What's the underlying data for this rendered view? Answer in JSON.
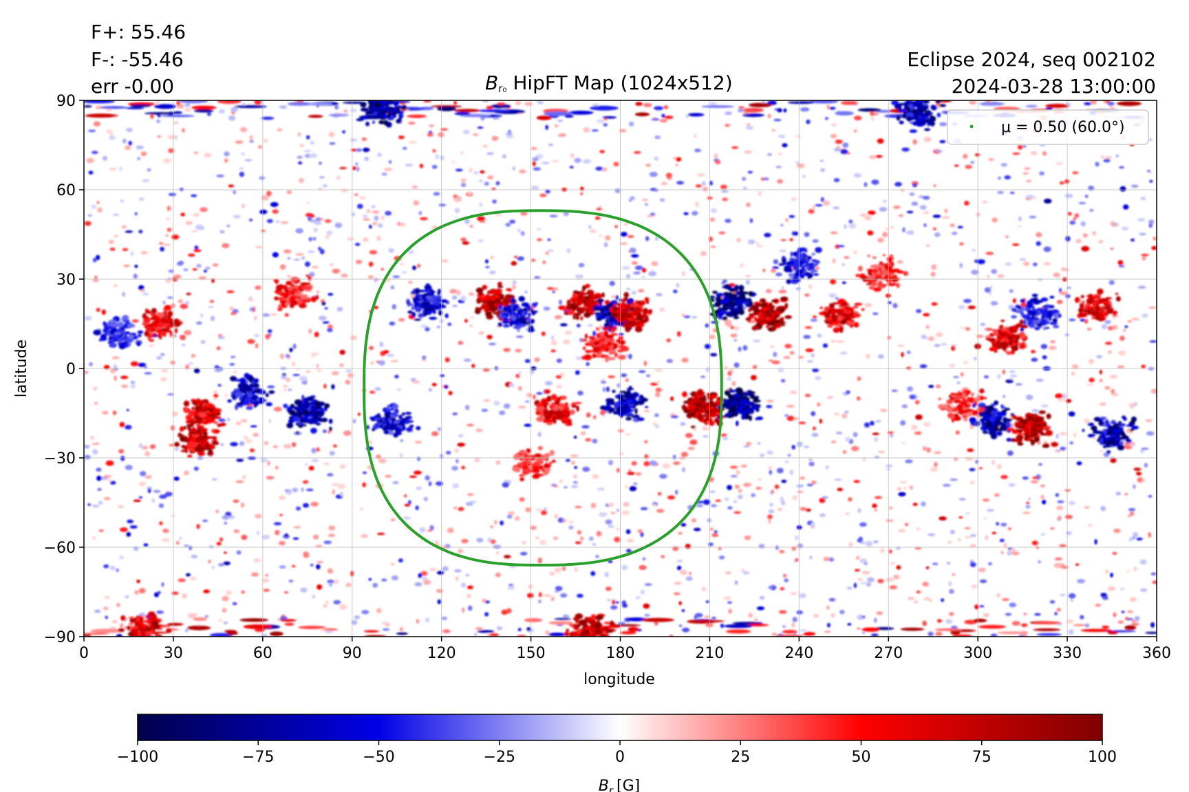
{
  "header": {
    "flux_pos": "F+: 55.46",
    "flux_neg": "F-: -55.46",
    "err": "err -0.00",
    "event": "Eclipse 2024, seq 002102",
    "datetime": "2024-03-28 13:00:00"
  },
  "chart_data": {
    "type": "heatmap",
    "title": {
      "symbol": "B",
      "subscript": "r₀",
      "text": "HipFT Map (1024x512)"
    },
    "xlabel": "longitude",
    "ylabel": "latitude",
    "xlim": [
      0,
      360
    ],
    "ylim": [
      -90,
      90
    ],
    "x_ticks": [
      "0",
      "30",
      "60",
      "90",
      "120",
      "150",
      "180",
      "210",
      "240",
      "270",
      "300",
      "330",
      "360"
    ],
    "y_ticks": [
      "90",
      "60",
      "30",
      "0",
      "−30",
      "−60",
      "−90"
    ],
    "grid": true,
    "colormap": "seismic",
    "color_range": [
      -100,
      100
    ],
    "colorbar": {
      "label_symbol": "B",
      "label_subscript": "r",
      "label_unit": "[G]",
      "ticks": [
        "−100",
        "−75",
        "−50",
        "−25",
        "0",
        "25",
        "50",
        "75",
        "100"
      ],
      "tick_values": [
        -100,
        -75,
        -50,
        -25,
        0,
        25,
        50,
        75,
        100
      ]
    },
    "legend": {
      "placement": "top-right",
      "entry": "μ = 0.50 (60.0°)",
      "color": "#2ca02c"
    },
    "contour": {
      "name": "μ = 0.50 (60.0°)",
      "color": "#2ca02c",
      "center_lon": 153,
      "center_lat": -7,
      "lon_min": 94,
      "lon_max": 214,
      "lat_min": -66,
      "lat_max": 53
    },
    "regions": [
      {
        "lon": 25,
        "lat": 15,
        "polarity": "positive",
        "strength": 70
      },
      {
        "lon": 12,
        "lat": 12,
        "polarity": "negative",
        "strength": 55
      },
      {
        "lon": 70,
        "lat": 25,
        "polarity": "positive",
        "strength": 60
      },
      {
        "lon": 40,
        "lat": -15,
        "polarity": "positive",
        "strength": 80
      },
      {
        "lon": 38,
        "lat": -24,
        "polarity": "positive",
        "strength": 90
      },
      {
        "lon": 55,
        "lat": -8,
        "polarity": "negative",
        "strength": 75
      },
      {
        "lon": 75,
        "lat": -15,
        "polarity": "negative",
        "strength": 85
      },
      {
        "lon": 103,
        "lat": -18,
        "polarity": "negative",
        "strength": 70
      },
      {
        "lon": 115,
        "lat": 22,
        "polarity": "negative",
        "strength": 70
      },
      {
        "lon": 138,
        "lat": 22,
        "polarity": "positive",
        "strength": 90
      },
      {
        "lon": 145,
        "lat": 18,
        "polarity": "negative",
        "strength": 70
      },
      {
        "lon": 168,
        "lat": 22,
        "polarity": "positive",
        "strength": 90
      },
      {
        "lon": 178,
        "lat": 18,
        "polarity": "negative",
        "strength": 90
      },
      {
        "lon": 184,
        "lat": 18,
        "polarity": "positive",
        "strength": 85
      },
      {
        "lon": 175,
        "lat": 8,
        "polarity": "positive",
        "strength": 60
      },
      {
        "lon": 158,
        "lat": -14,
        "polarity": "positive",
        "strength": 70
      },
      {
        "lon": 182,
        "lat": -12,
        "polarity": "negative",
        "strength": 80
      },
      {
        "lon": 150,
        "lat": -32,
        "polarity": "positive",
        "strength": 55
      },
      {
        "lon": 208,
        "lat": -13,
        "polarity": "positive",
        "strength": 100
      },
      {
        "lon": 220,
        "lat": -12,
        "polarity": "negative",
        "strength": 100
      },
      {
        "lon": 218,
        "lat": 22,
        "polarity": "negative",
        "strength": 100
      },
      {
        "lon": 230,
        "lat": 18,
        "polarity": "positive",
        "strength": 100
      },
      {
        "lon": 254,
        "lat": 18,
        "polarity": "positive",
        "strength": 75
      },
      {
        "lon": 240,
        "lat": 35,
        "polarity": "negative",
        "strength": 60
      },
      {
        "lon": 268,
        "lat": 32,
        "polarity": "positive",
        "strength": 60
      },
      {
        "lon": 310,
        "lat": 10,
        "polarity": "positive",
        "strength": 75
      },
      {
        "lon": 320,
        "lat": 18,
        "polarity": "negative",
        "strength": 60
      },
      {
        "lon": 340,
        "lat": 20,
        "polarity": "positive",
        "strength": 75
      },
      {
        "lon": 305,
        "lat": -17,
        "polarity": "negative",
        "strength": 85
      },
      {
        "lon": 318,
        "lat": -20,
        "polarity": "positive",
        "strength": 85
      },
      {
        "lon": 345,
        "lat": -22,
        "polarity": "negative",
        "strength": 80
      },
      {
        "lon": 295,
        "lat": -12,
        "polarity": "positive",
        "strength": 55
      },
      {
        "lon": 100,
        "lat": 87,
        "polarity": "negative",
        "strength": 90
      },
      {
        "lon": 280,
        "lat": 86,
        "polarity": "negative",
        "strength": 80
      },
      {
        "lon": 170,
        "lat": -88,
        "polarity": "positive",
        "strength": 90
      },
      {
        "lon": 20,
        "lat": -88,
        "polarity": "positive",
        "strength": 80
      }
    ]
  }
}
